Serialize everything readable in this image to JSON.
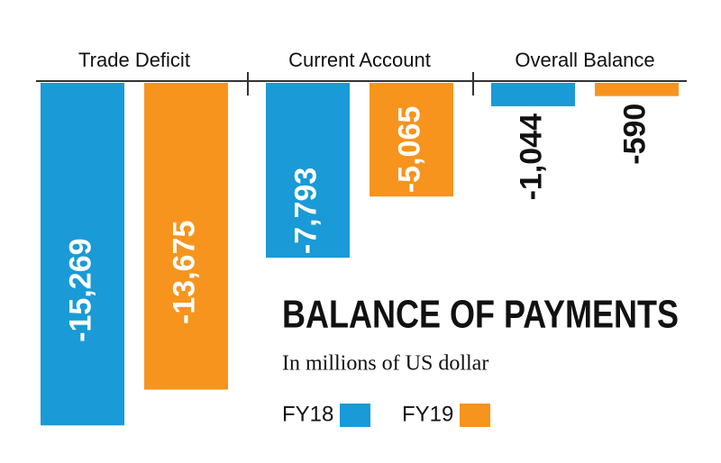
{
  "chart_data": {
    "type": "bar",
    "title": "BALANCE OF PAYMENTS",
    "subtitle": "In millions of US dollar",
    "categories": [
      "Trade Deficit",
      "Current Account",
      "Overall Balance"
    ],
    "series": [
      {
        "name": "FY18",
        "color": "#1a9ad6",
        "values": [
          -15269,
          -7793,
          -1044
        ],
        "value_labels": [
          "-15,269",
          "-7,793",
          "-1,044"
        ]
      },
      {
        "name": "FY19",
        "color": "#f7941d",
        "values": [
          -13675,
          -5065,
          -590
        ],
        "value_labels": [
          "-13,675",
          "-5,065",
          "-590"
        ]
      }
    ],
    "ylim": [
      -15500,
      0
    ]
  }
}
